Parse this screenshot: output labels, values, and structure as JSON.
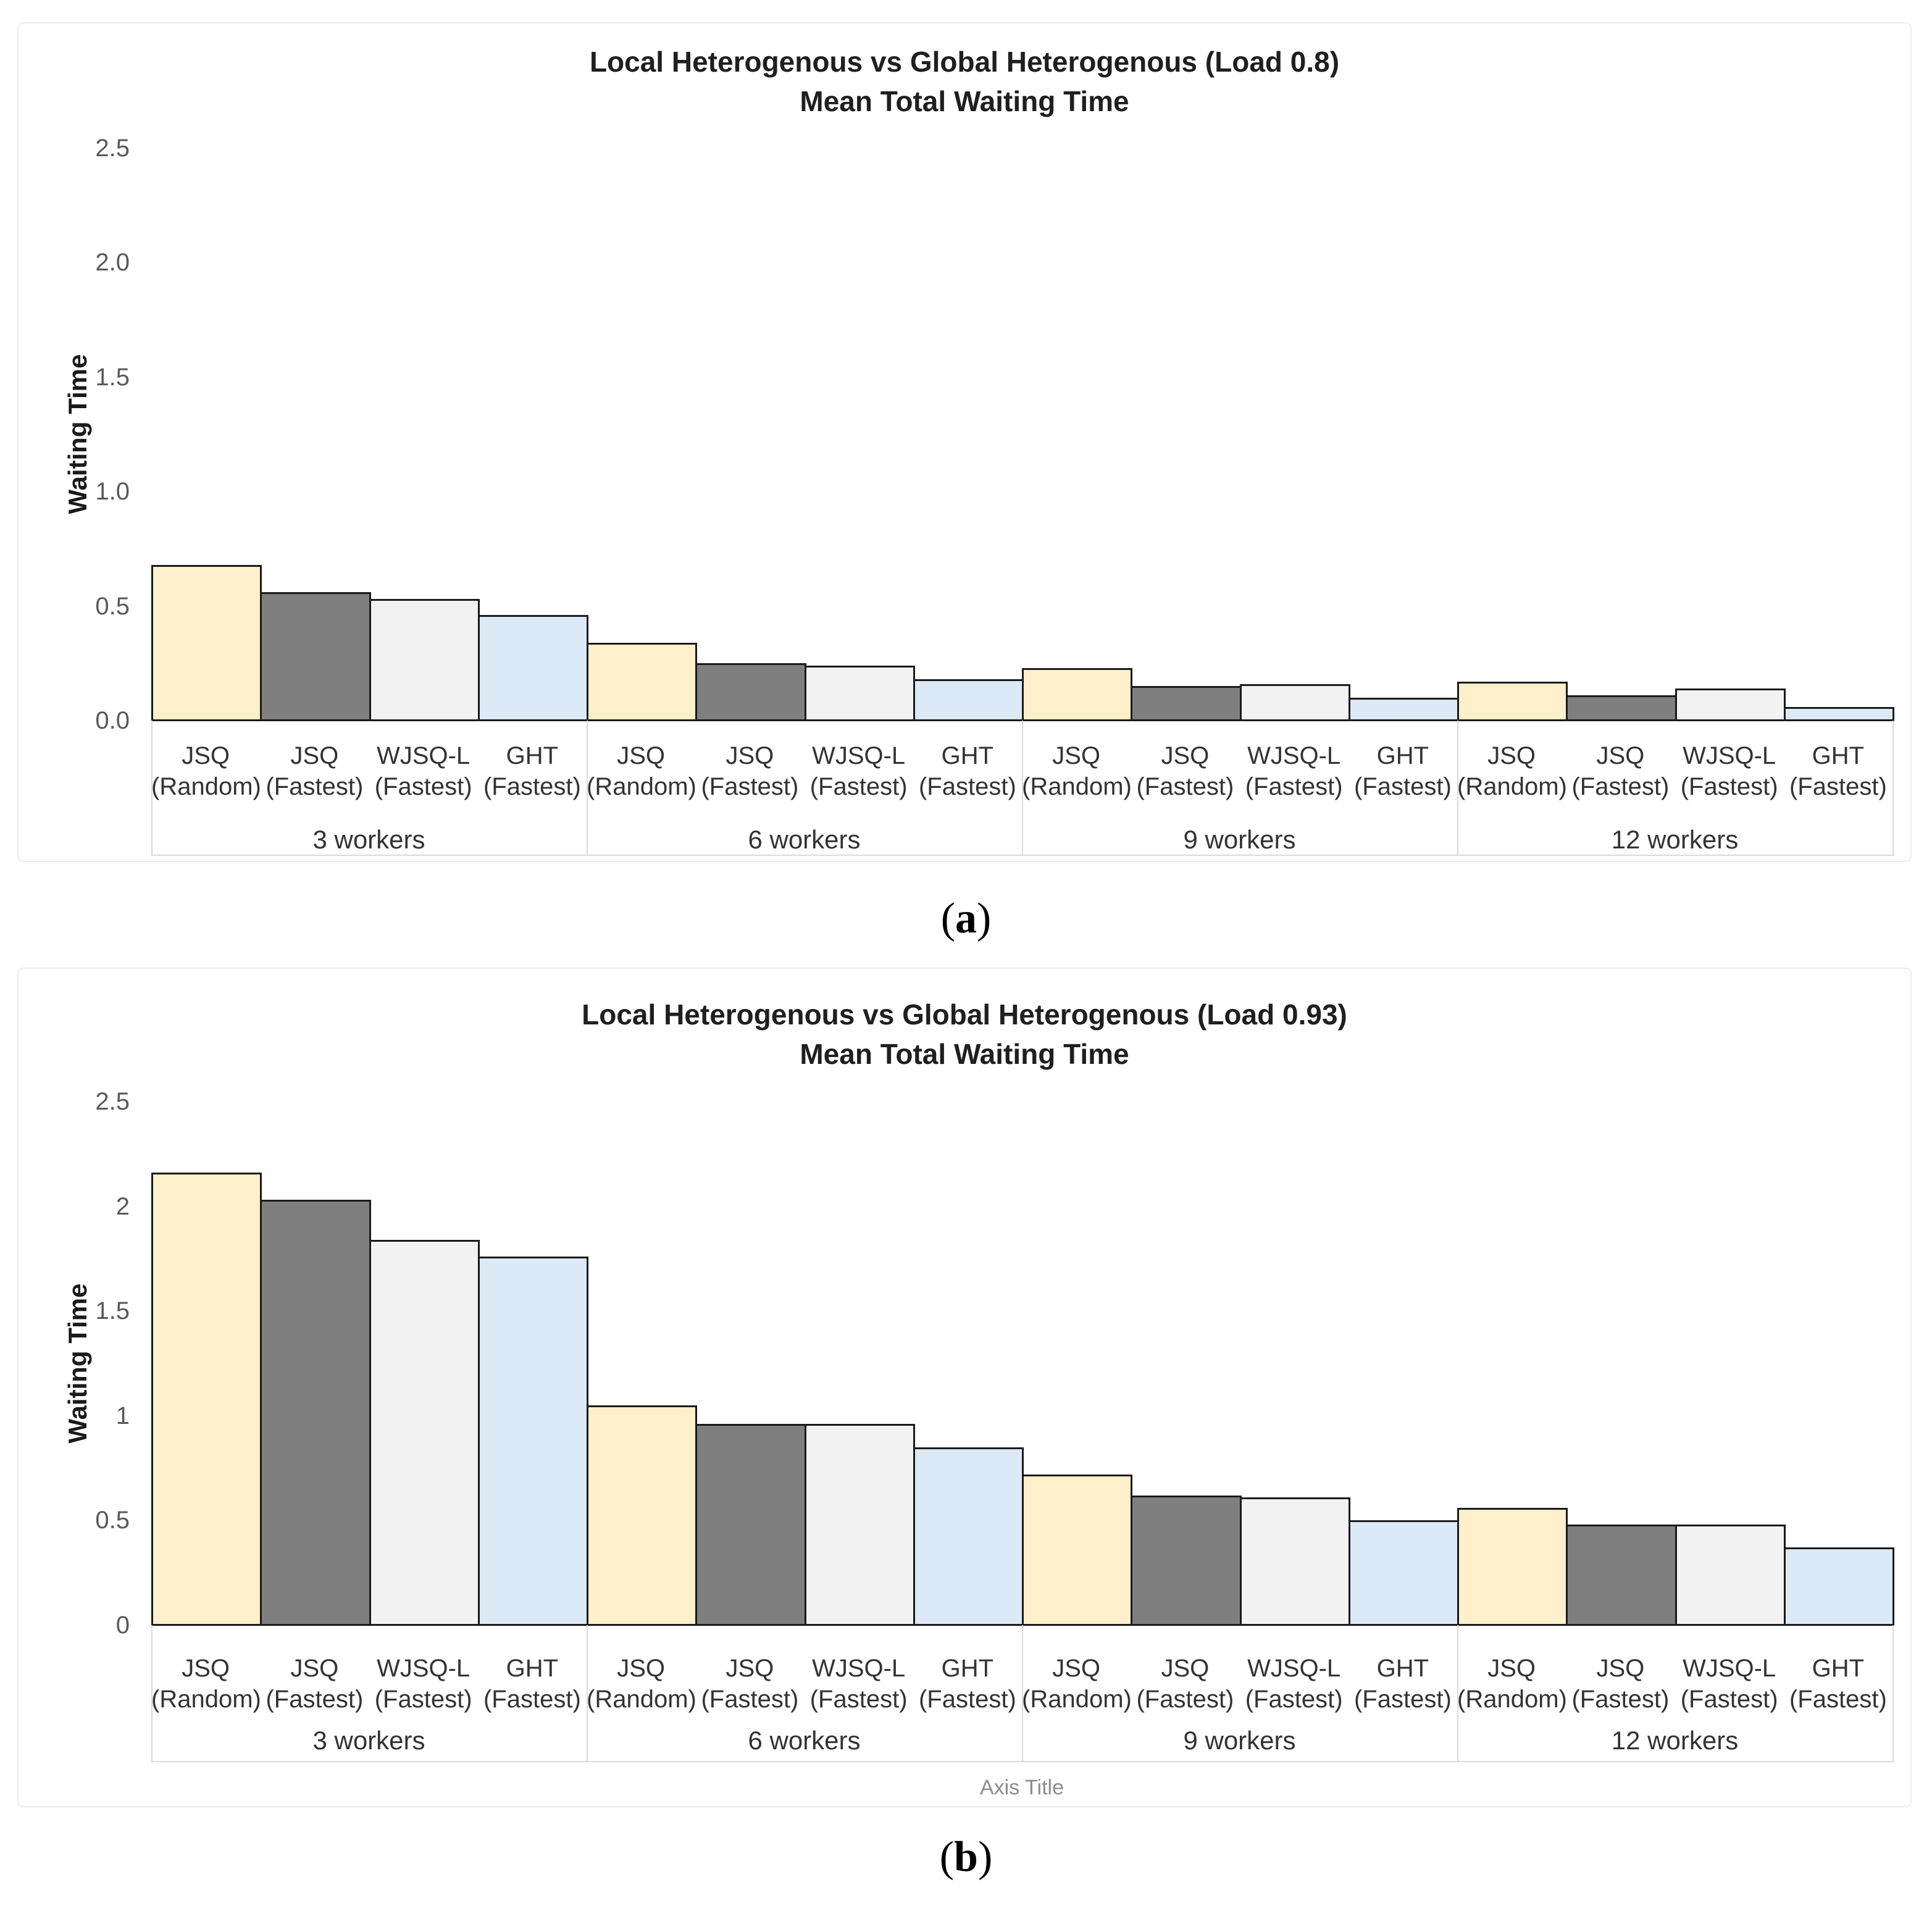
{
  "figure": {
    "captions": [
      {
        "open": "(",
        "letter": "a",
        "close": ")"
      },
      {
        "open": "(",
        "letter": "b",
        "close": ")"
      }
    ]
  },
  "colors": {
    "series_yellow": "#FDF0CB",
    "series_dark_gray": "#7F7F7F",
    "series_light_gray": "#F2F2F2",
    "series_blue": "#DCE9F6",
    "bar_border": "#1A1A1A",
    "axis_line": "#D9D9D9",
    "tick_text": "#595959",
    "category_text": "#333333",
    "title_text": "#1F1F1F",
    "axis_title_text": "#8C8C8C"
  },
  "chart_data": [
    {
      "type": "bar",
      "title_line1": "Local Heterogenous vs Global Heterogenous (Load 0.8)",
      "title_line2": "Mean Total Waiting Time",
      "ylabel": "Waiting Time",
      "ylim": [
        0,
        2.5
      ],
      "grid": false,
      "legend": "none",
      "x_axis_title": "",
      "y_ticks": [
        {
          "label": "2.5",
          "value": 2.5
        },
        {
          "label": "2.0",
          "value": 2.0
        },
        {
          "label": "1.5",
          "value": 1.5
        },
        {
          "label": "1.0",
          "value": 1.0
        },
        {
          "label": "0.5",
          "value": 0.5
        },
        {
          "label": "0.0",
          "value": 0.0
        }
      ],
      "categories": [
        "3 workers",
        "6 workers",
        "9 workers",
        "12 workers"
      ],
      "series": [
        {
          "label_line1": "JSQ",
          "label_line2": "(Random)",
          "color": "series_yellow",
          "values": [
            0.68,
            0.34,
            0.23,
            0.17
          ]
        },
        {
          "label_line1": "JSQ",
          "label_line2": "(Fastest)",
          "color": "series_dark_gray",
          "values": [
            0.56,
            0.25,
            0.15,
            0.11
          ]
        },
        {
          "label_line1": "WJSQ-L",
          "label_line2": "(Fastest)",
          "color": "series_light_gray",
          "values": [
            0.53,
            0.24,
            0.16,
            0.14
          ]
        },
        {
          "label_line1": "GHT",
          "label_line2": "(Fastest)",
          "color": "series_blue",
          "values": [
            0.46,
            0.18,
            0.1,
            0.06
          ]
        }
      ]
    },
    {
      "type": "bar",
      "title_line1": "Local Heterogenous vs Global Heterogenous (Load 0.93)",
      "title_line2": "Mean Total Waiting Time",
      "ylabel": "Waiting Time",
      "ylim": [
        0,
        2.5
      ],
      "grid": false,
      "legend": "none",
      "x_axis_title": "Axis Title",
      "y_ticks": [
        {
          "label": "2.5",
          "value": 2.5
        },
        {
          "label": "2",
          "value": 2.0
        },
        {
          "label": "1.5",
          "value": 1.5
        },
        {
          "label": "1",
          "value": 1.0
        },
        {
          "label": "0.5",
          "value": 0.5
        },
        {
          "label": "0",
          "value": 0.0
        }
      ],
      "categories": [
        "3 workers",
        "6 workers",
        "9 workers",
        "12 workers"
      ],
      "series": [
        {
          "label_line1": "JSQ",
          "label_line2": "(Random)",
          "color": "series_yellow",
          "values": [
            2.16,
            1.05,
            0.72,
            0.56
          ]
        },
        {
          "label_line1": "JSQ",
          "label_line2": "(Fastest)",
          "color": "series_dark_gray",
          "values": [
            2.03,
            0.96,
            0.62,
            0.48
          ]
        },
        {
          "label_line1": "WJSQ-L",
          "label_line2": "(Fastest)",
          "color": "series_light_gray",
          "values": [
            1.84,
            0.96,
            0.61,
            0.48
          ]
        },
        {
          "label_line1": "GHT",
          "label_line2": "(Fastest)",
          "color": "series_blue",
          "values": [
            1.76,
            0.85,
            0.5,
            0.37
          ]
        }
      ]
    }
  ]
}
